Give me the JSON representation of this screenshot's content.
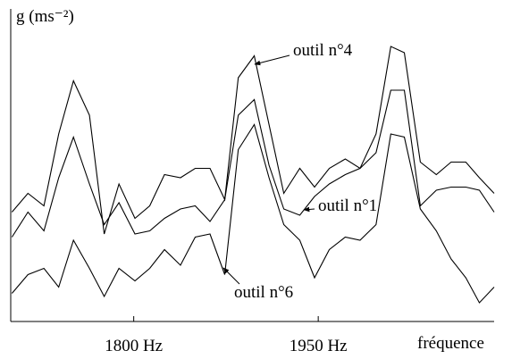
{
  "chart_data": {
    "type": "line",
    "ylabel": "g (ms⁻²)",
    "xlabel": "fréquence",
    "x": [
      1701,
      1714,
      1727,
      1739,
      1751,
      1764,
      1776,
      1788,
      1801,
      1813,
      1825,
      1838,
      1850,
      1862,
      1874,
      1885,
      1898,
      1910,
      1922,
      1935,
      1947,
      1959,
      1972,
      1984,
      1997,
      2009,
      2020,
      2033,
      2046,
      2058,
      2070,
      2081,
      2093
    ],
    "xlim": [
      1700,
      2093
    ],
    "xticks": [
      {
        "value": 1800,
        "label": "1800 Hz"
      },
      {
        "value": 1950,
        "label": "1950 Hz"
      }
    ],
    "ylim": [
      0,
      100
    ],
    "grid": false,
    "series": [
      {
        "name": "outil n°4",
        "color": "#000000",
        "values": [
          35,
          41,
          37,
          60,
          77,
          66,
          28,
          44,
          33,
          37,
          47,
          46,
          49,
          49,
          39,
          78,
          85,
          63,
          41,
          49,
          43,
          49,
          52,
          49,
          60,
          88,
          86,
          51,
          47,
          51,
          51,
          46,
          41
        ]
      },
      {
        "name": "outil n°1",
        "color": "#000000",
        "values": [
          27,
          35,
          29,
          46,
          59,
          44,
          31,
          38,
          28,
          29,
          33,
          36,
          37,
          32,
          39,
          66,
          71,
          50,
          36,
          34,
          40,
          44,
          47,
          49,
          54,
          74,
          74,
          37,
          42,
          43,
          43,
          42,
          35
        ]
      },
      {
        "name": "outil n°6",
        "color": "#000000",
        "values": [
          9,
          15,
          17,
          11,
          26,
          17,
          8,
          17,
          13,
          17,
          23,
          18,
          27,
          28,
          15,
          55,
          63,
          46,
          31,
          26,
          14,
          23,
          27,
          26,
          31,
          60,
          59,
          36,
          29,
          20,
          14,
          6,
          11
        ]
      }
    ]
  }
}
